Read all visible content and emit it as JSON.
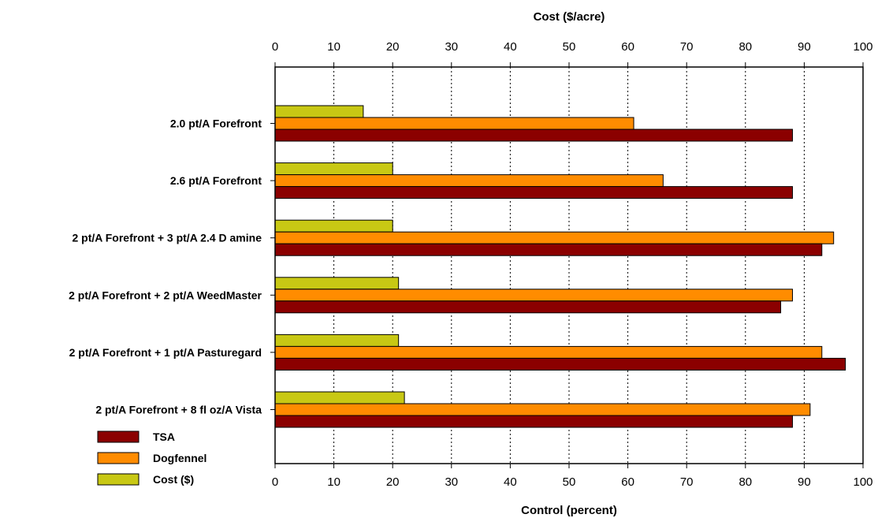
{
  "chart_data": {
    "type": "bar",
    "orientation": "horizontal",
    "categories": [
      "2.0 pt/A Forefront",
      "2.6 pt/A Forefront",
      "2 pt/A Forefront + 3 pt/A 2.4 D amine",
      "2 pt/A Forefront + 2 pt/A WeedMaster",
      "2 pt/A Forefront + 1 pt/A Pasturegard",
      "2 pt/A Forefront + 8 fl oz/A Vista"
    ],
    "series": [
      {
        "name": "Cost ($)",
        "color": "#c8c814",
        "values": [
          15,
          20,
          20,
          21,
          21,
          22
        ]
      },
      {
        "name": "Dogfennel",
        "color": "#ff8c00",
        "values": [
          61,
          66,
          95,
          88,
          93,
          91
        ]
      },
      {
        "name": "TSA",
        "color": "#8b0000",
        "values": [
          88,
          88,
          93,
          86,
          97,
          88
        ]
      }
    ],
    "legend_order": [
      "TSA",
      "Dogfennel",
      "Cost ($)"
    ],
    "legend_position": "bottom-left",
    "xlabel": "Control  (percent)",
    "x2label": "Cost  ($/acre)",
    "xlim": [
      0,
      100
    ],
    "x2lim": [
      0,
      100
    ],
    "xticks": [
      "0",
      "10",
      "20",
      "30",
      "40",
      "50",
      "60",
      "70",
      "80",
      "90",
      "100"
    ],
    "grid": "vertical dotted"
  }
}
